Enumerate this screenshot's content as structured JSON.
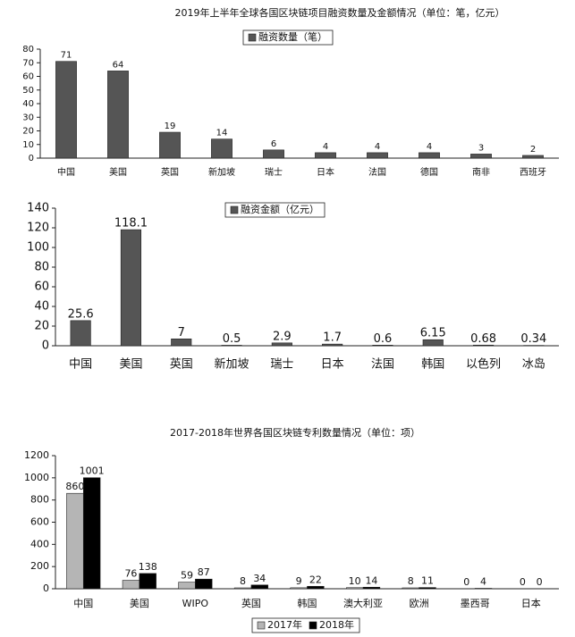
{
  "chart_data": [
    {
      "type": "bar",
      "title": "2019年上半年全球各国区块链项目融资数量及金额情况（单位：笔，亿元）",
      "categories": [
        "中国",
        "美国",
        "英国",
        "新加坡",
        "瑞士",
        "日本",
        "法国",
        "德国",
        "南非",
        "西班牙"
      ],
      "series": [
        {
          "name": "融资数量（笔）",
          "color": "#555555",
          "values": [
            71,
            64,
            19,
            14,
            6,
            4,
            4,
            4,
            3,
            2
          ]
        }
      ],
      "ylim": [
        0,
        80
      ],
      "yticks": [
        0,
        10,
        20,
        30,
        40,
        50,
        60,
        70,
        80
      ],
      "legend": "top",
      "data_labels": true
    },
    {
      "type": "bar",
      "categories": [
        "中国",
        "美国",
        "英国",
        "新加坡",
        "瑞士",
        "日本",
        "法国",
        "韩国",
        "以色列",
        "冰岛"
      ],
      "series": [
        {
          "name": "融资金额（亿元）",
          "color": "#555555",
          "values": [
            25.6,
            118.1,
            7,
            0.5,
            2.9,
            1.7,
            0.6,
            6.15,
            0.68,
            0.34
          ]
        }
      ],
      "ylim": [
        0,
        140
      ],
      "yticks": [
        0,
        20,
        40,
        60,
        80,
        100,
        120,
        140
      ],
      "legend": "top",
      "data_labels": true
    },
    {
      "type": "bar",
      "title": "2017-2018年世界各国区块链专利数量情况（单位：项）",
      "categories": [
        "中国",
        "美国",
        "WIPO",
        "英国",
        "韩国",
        "澳大利亚",
        "欧洲",
        "墨西哥",
        "日本"
      ],
      "series": [
        {
          "name": "2017年",
          "color": "#b5b5b5",
          "values": [
            860,
            76,
            59,
            8,
            9,
            10,
            8,
            0,
            0
          ]
        },
        {
          "name": "2018年",
          "color": "#000000",
          "values": [
            1001,
            138,
            87,
            34,
            22,
            14,
            11,
            4,
            0
          ]
        }
      ],
      "ylim": [
        0,
        1200
      ],
      "yticks": [
        0,
        200,
        400,
        600,
        800,
        1000,
        1200
      ],
      "legend": "bottom",
      "data_labels": true
    }
  ]
}
